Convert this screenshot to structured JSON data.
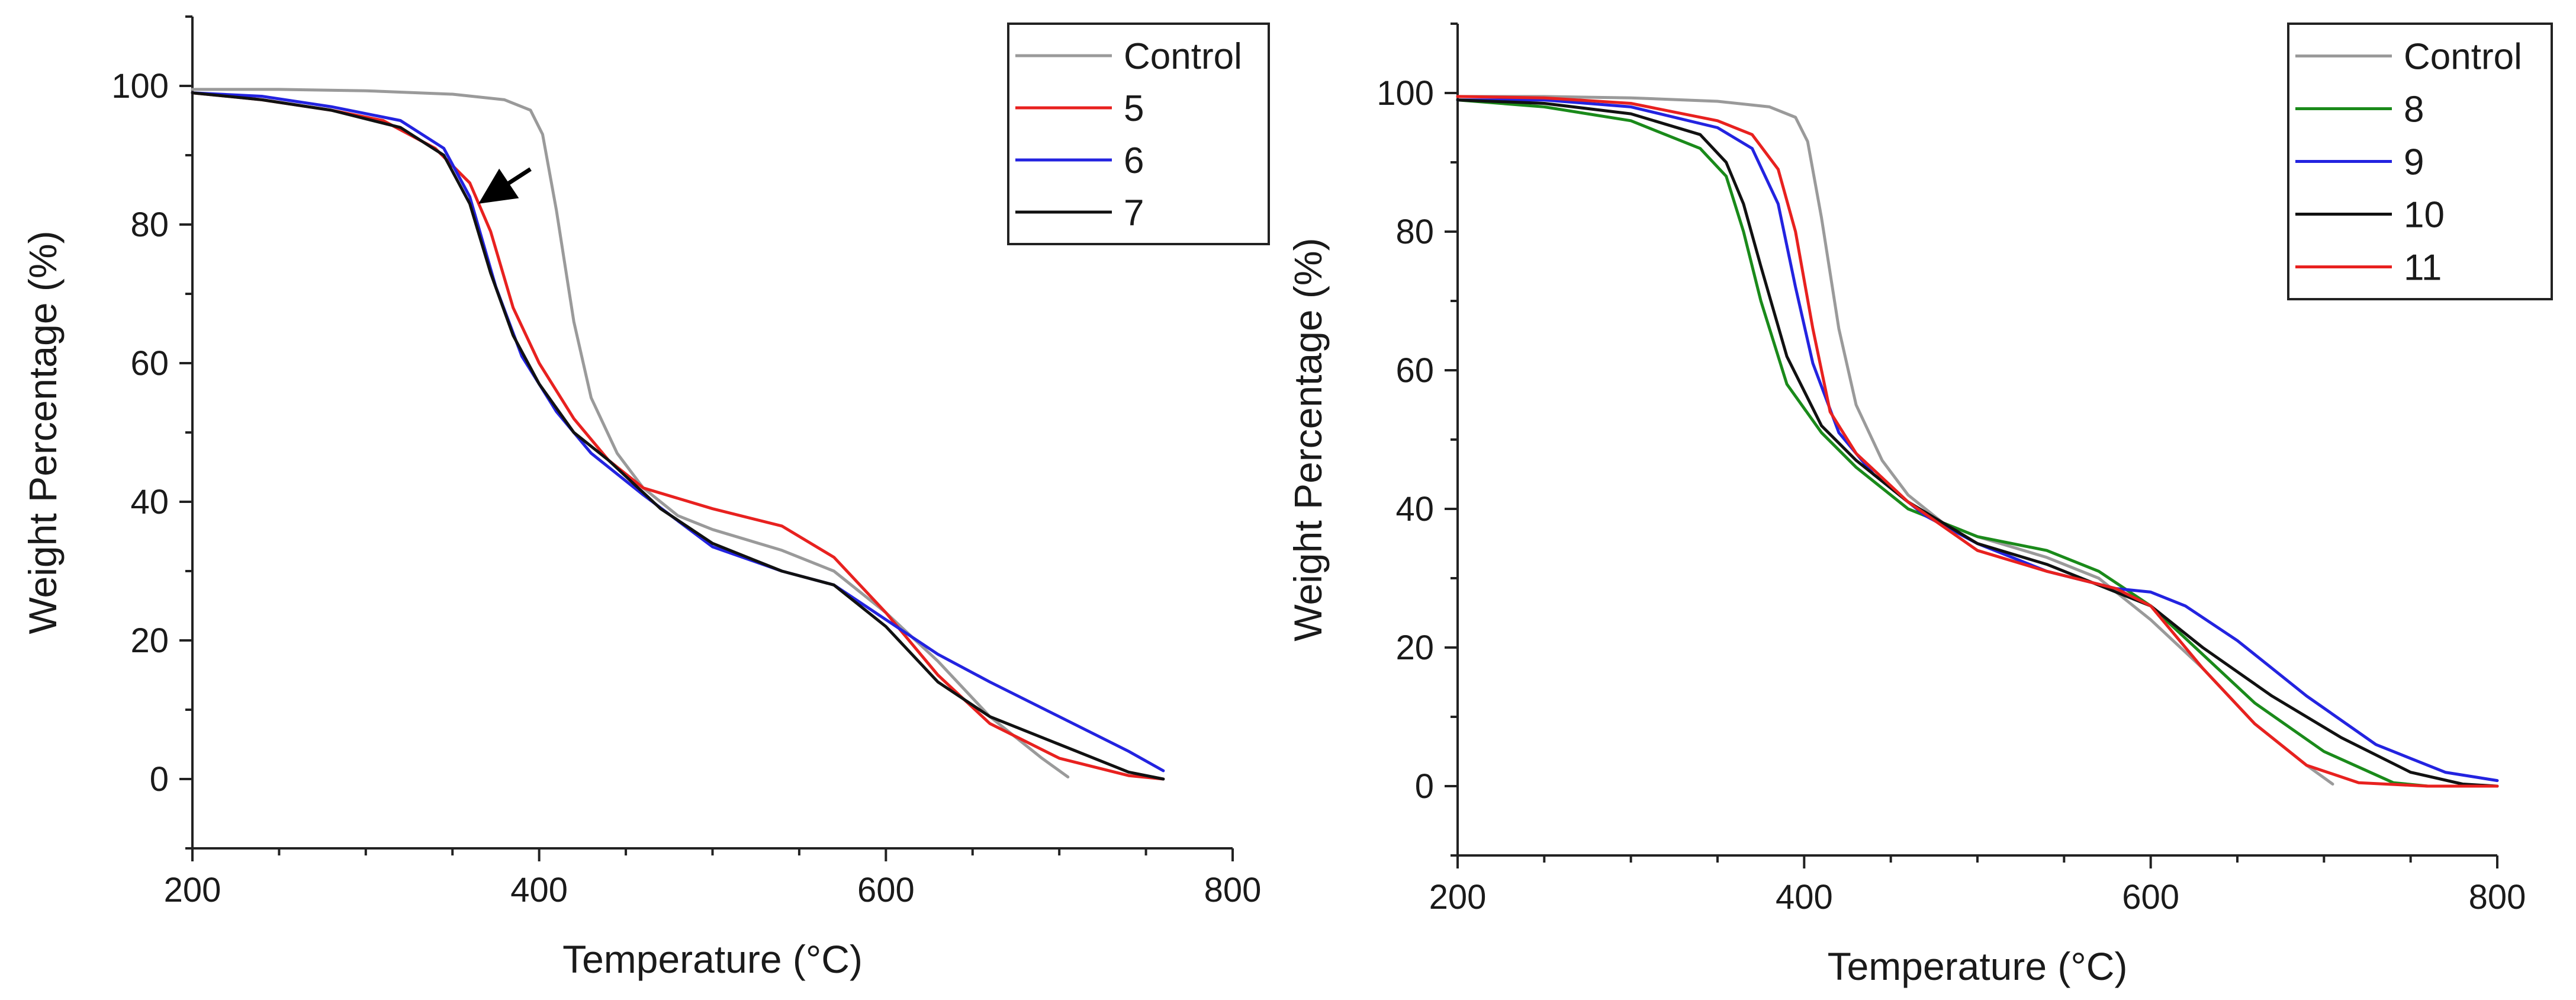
{
  "chart_data": [
    {
      "type": "line",
      "xlabel": "Temperature (°C)",
      "ylabel": "Weight Percentage (%)",
      "xlim": [
        200,
        800
      ],
      "ylim": [
        -10,
        110
      ],
      "xticks": [
        200,
        400,
        600,
        800
      ],
      "yticks": [
        0,
        20,
        40,
        60,
        80,
        100
      ],
      "grid": false,
      "legend_position": "top-right",
      "annotation": {
        "type": "arrow",
        "points_to": [
          365,
          83
        ],
        "from": [
          395,
          88
        ]
      },
      "series": [
        {
          "name": "Control",
          "color": "#9a9a9a",
          "points": [
            [
              200,
              99.5
            ],
            [
              250,
              99.5
            ],
            [
              300,
              99.3
            ],
            [
              350,
              98.8
            ],
            [
              380,
              98
            ],
            [
              395,
              96.5
            ],
            [
              402,
              93
            ],
            [
              410,
              82
            ],
            [
              420,
              66
            ],
            [
              430,
              55
            ],
            [
              445,
              47
            ],
            [
              460,
              42
            ],
            [
              480,
              38
            ],
            [
              500,
              36
            ],
            [
              540,
              33
            ],
            [
              570,
              30
            ],
            [
              600,
              24
            ],
            [
              630,
              17
            ],
            [
              660,
              9
            ],
            [
              690,
              3
            ],
            [
              705,
              0.3
            ]
          ]
        },
        {
          "name": "5",
          "color": "#e8211f",
          "points": [
            [
              200,
              99
            ],
            [
              240,
              98
            ],
            [
              280,
              96.5
            ],
            [
              310,
              95
            ],
            [
              340,
              91
            ],
            [
              360,
              86
            ],
            [
              372,
              79
            ],
            [
              385,
              68
            ],
            [
              400,
              60
            ],
            [
              420,
              52
            ],
            [
              440,
              46
            ],
            [
              460,
              42
            ],
            [
              500,
              39
            ],
            [
              540,
              36.5
            ],
            [
              570,
              32
            ],
            [
              600,
              24
            ],
            [
              630,
              15
            ],
            [
              660,
              8
            ],
            [
              700,
              3
            ],
            [
              740,
              0.5
            ],
            [
              760,
              0
            ]
          ]
        },
        {
          "name": "6",
          "color": "#2323e0",
          "points": [
            [
              200,
              99
            ],
            [
              240,
              98.5
            ],
            [
              280,
              97
            ],
            [
              320,
              95
            ],
            [
              345,
              91
            ],
            [
              360,
              84
            ],
            [
              375,
              71
            ],
            [
              390,
              61
            ],
            [
              410,
              53
            ],
            [
              430,
              47
            ],
            [
              460,
              41
            ],
            [
              500,
              33.5
            ],
            [
              540,
              30
            ],
            [
              570,
              28
            ],
            [
              600,
              23
            ],
            [
              630,
              18
            ],
            [
              660,
              14
            ],
            [
              700,
              9
            ],
            [
              740,
              4
            ],
            [
              760,
              1.2
            ]
          ]
        },
        {
          "name": "7",
          "color": "#111111",
          "points": [
            [
              200,
              99
            ],
            [
              240,
              98
            ],
            [
              280,
              96.5
            ],
            [
              320,
              94
            ],
            [
              345,
              90
            ],
            [
              360,
              83
            ],
            [
              372,
              73
            ],
            [
              385,
              64
            ],
            [
              400,
              57
            ],
            [
              420,
              50
            ],
            [
              440,
              46
            ],
            [
              470,
              39
            ],
            [
              500,
              34
            ],
            [
              540,
              30
            ],
            [
              570,
              28
            ],
            [
              600,
              22
            ],
            [
              630,
              14
            ],
            [
              660,
              9
            ],
            [
              700,
              5
            ],
            [
              740,
              1
            ],
            [
              760,
              0
            ]
          ]
        }
      ]
    },
    {
      "type": "line",
      "xlabel": "Temperature (°C)",
      "ylabel": "Weight Percentage (%)",
      "xlim": [
        200,
        800
      ],
      "ylim": [
        -10,
        110
      ],
      "xticks": [
        200,
        400,
        600,
        800
      ],
      "yticks": [
        0,
        20,
        40,
        60,
        80,
        100
      ],
      "grid": false,
      "legend_position": "top-right",
      "series": [
        {
          "name": "Control",
          "color": "#9a9a9a",
          "points": [
            [
              200,
              99.5
            ],
            [
              250,
              99.5
            ],
            [
              300,
              99.3
            ],
            [
              350,
              98.8
            ],
            [
              380,
              98
            ],
            [
              395,
              96.5
            ],
            [
              402,
              93
            ],
            [
              410,
              82
            ],
            [
              420,
              66
            ],
            [
              430,
              55
            ],
            [
              445,
              47
            ],
            [
              460,
              42
            ],
            [
              480,
              38
            ],
            [
              500,
              36
            ],
            [
              540,
              33
            ],
            [
              570,
              30
            ],
            [
              600,
              24
            ],
            [
              630,
              17
            ],
            [
              660,
              9
            ],
            [
              690,
              3
            ],
            [
              705,
              0.3
            ]
          ]
        },
        {
          "name": "8",
          "color": "#1a8a1a",
          "points": [
            [
              200,
              99
            ],
            [
              250,
              98
            ],
            [
              300,
              96
            ],
            [
              340,
              92
            ],
            [
              355,
              88
            ],
            [
              365,
              80
            ],
            [
              375,
              70
            ],
            [
              390,
              58
            ],
            [
              410,
              51
            ],
            [
              430,
              46
            ],
            [
              460,
              40
            ],
            [
              500,
              36
            ],
            [
              540,
              34
            ],
            [
              570,
              31
            ],
            [
              600,
              26
            ],
            [
              630,
              19
            ],
            [
              660,
              12
            ],
            [
              700,
              5
            ],
            [
              740,
              0.5
            ],
            [
              760,
              0
            ]
          ]
        },
        {
          "name": "9",
          "color": "#2323e0",
          "points": [
            [
              200,
              99
            ],
            [
              250,
              99
            ],
            [
              300,
              98
            ],
            [
              350,
              95
            ],
            [
              370,
              92
            ],
            [
              385,
              84
            ],
            [
              395,
              72
            ],
            [
              405,
              61
            ],
            [
              420,
              51
            ],
            [
              440,
              45
            ],
            [
              470,
              39
            ],
            [
              500,
              35
            ],
            [
              540,
              31
            ],
            [
              580,
              28.5
            ],
            [
              600,
              28
            ],
            [
              620,
              26
            ],
            [
              650,
              21
            ],
            [
              690,
              13
            ],
            [
              730,
              6
            ],
            [
              770,
              2
            ],
            [
              800,
              0.8
            ]
          ]
        },
        {
          "name": "10",
          "color": "#111111",
          "points": [
            [
              200,
              99
            ],
            [
              250,
              98.5
            ],
            [
              300,
              97
            ],
            [
              340,
              94
            ],
            [
              355,
              90
            ],
            [
              365,
              84
            ],
            [
              375,
              75
            ],
            [
              390,
              62
            ],
            [
              410,
              52
            ],
            [
              430,
              47
            ],
            [
              460,
              41
            ],
            [
              500,
              35
            ],
            [
              540,
              32
            ],
            [
              580,
              28
            ],
            [
              600,
              26
            ],
            [
              630,
              20
            ],
            [
              670,
              13
            ],
            [
              710,
              7
            ],
            [
              750,
              2
            ],
            [
              780,
              0.3
            ],
            [
              800,
              0
            ]
          ]
        },
        {
          "name": "11",
          "color": "#e8211f",
          "points": [
            [
              200,
              99.5
            ],
            [
              250,
              99.3
            ],
            [
              300,
              98.5
            ],
            [
              350,
              96
            ],
            [
              370,
              94
            ],
            [
              385,
              89
            ],
            [
              395,
              80
            ],
            [
              405,
              66
            ],
            [
              415,
              54
            ],
            [
              430,
              48
            ],
            [
              460,
              41
            ],
            [
              500,
              34
            ],
            [
              540,
              31
            ],
            [
              580,
              28.5
            ],
            [
              600,
              26
            ],
            [
              630,
              17
            ],
            [
              660,
              9
            ],
            [
              690,
              3
            ],
            [
              720,
              0.5
            ],
            [
              760,
              0
            ],
            [
              800,
              0
            ]
          ]
        }
      ]
    }
  ]
}
